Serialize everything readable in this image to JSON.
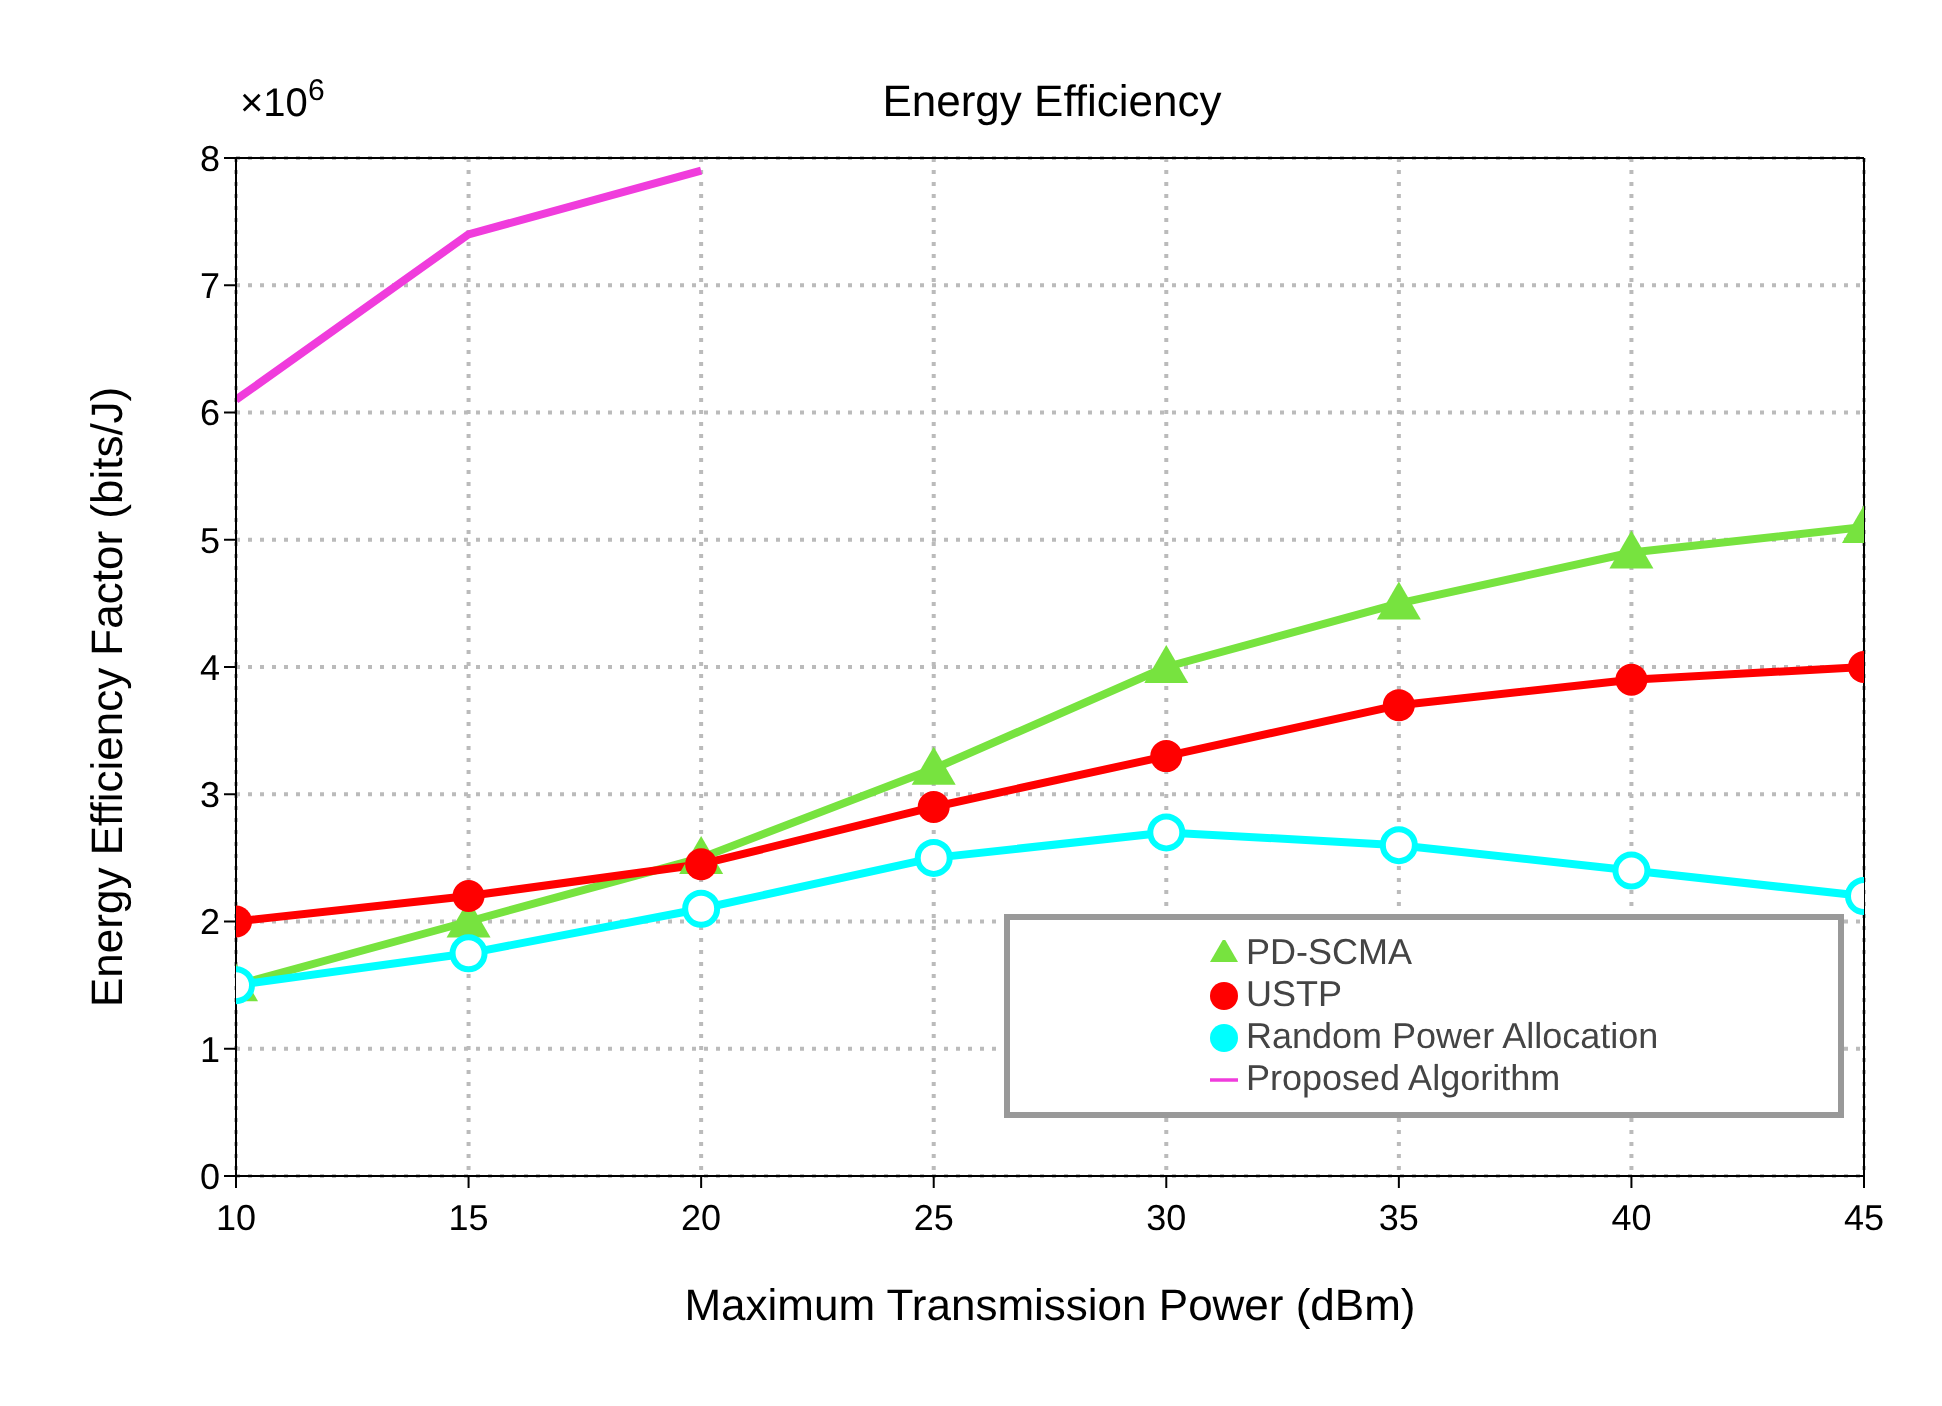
{
  "chart_data": {
    "type": "line",
    "title": "Energy Efficiency",
    "xlabel": "Maximum Transmission Power (dBm)",
    "ylabel": "Energy Efficiency Factor (bits/J)",
    "annotations": [
      "×10$^{6}$"
    ],
    "x": [
      10,
      15,
      20,
      25,
      30,
      35,
      40,
      45
    ],
    "series": [
      {
        "name": "PD-SCMA",
        "color": "#77e33f",
        "marker": "triangle",
        "values": [
          1.5,
          2.0,
          2.5,
          3.2,
          4.0,
          4.5,
          4.9,
          5.1
        ]
      },
      {
        "name": "USTP",
        "color": "#ff0000",
        "marker": "circle",
        "values": [
          2.0,
          2.2,
          2.45,
          2.9,
          3.3,
          3.7,
          3.9,
          4.0
        ]
      },
      {
        "name": "Random Power Allocation",
        "color": "#00ffff",
        "marker": "hollow-circle",
        "values": [
          1.5,
          1.75,
          2.1,
          2.5,
          2.7,
          2.6,
          2.4,
          2.2
        ]
      },
      {
        "name": "Proposed Algorithm",
        "color": "#f03cdc",
        "marker": "none",
        "values": [
          6.1,
          7.4,
          7.9,
          null,
          null,
          null,
          null,
          null
        ]
      }
    ],
    "xlim": [
      10,
      45
    ],
    "xticks": [
      10,
      15,
      20,
      25,
      30,
      35,
      40,
      45
    ],
    "ylim": [
      0,
      8
    ],
    "yticks": [
      0,
      1,
      2,
      3,
      4,
      5,
      6,
      7,
      8
    ],
    "grid": true,
    "line_style": "solid",
    "legend": "bottom right"
  }
}
